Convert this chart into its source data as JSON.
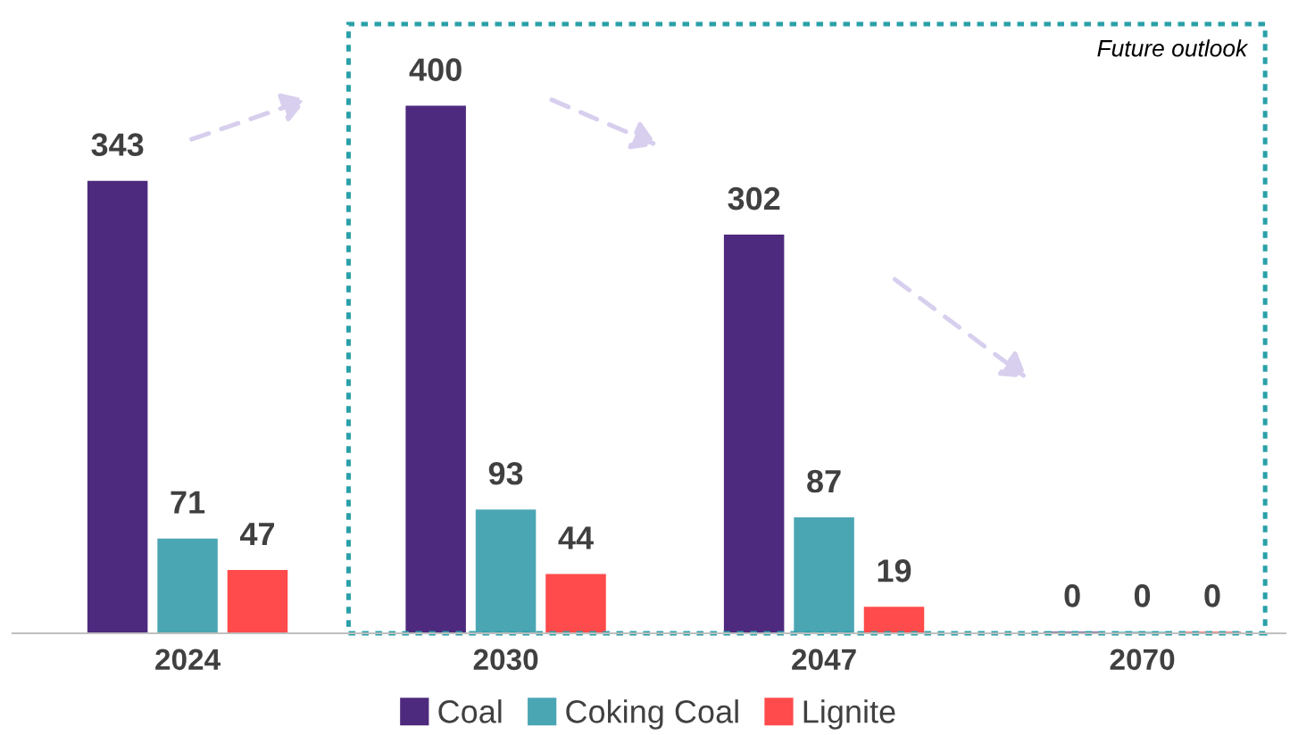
{
  "chart_data": {
    "type": "bar",
    "categories": [
      "2024",
      "2030",
      "2047",
      "2070"
    ],
    "series": [
      {
        "name": "Coal",
        "color": "#4e2a7e",
        "values": [
          343,
          400,
          302,
          0
        ]
      },
      {
        "name": "Coking Coal",
        "color": "#4ba6b4",
        "values": [
          71,
          93,
          87,
          0
        ]
      },
      {
        "name": "Lignite",
        "color": "#ff4b4b",
        "values": [
          47,
          44,
          19,
          0
        ]
      }
    ],
    "data_labels": true,
    "legend": "bottom",
    "grid": false,
    "annotations": [
      "Future outlook"
    ]
  }
}
